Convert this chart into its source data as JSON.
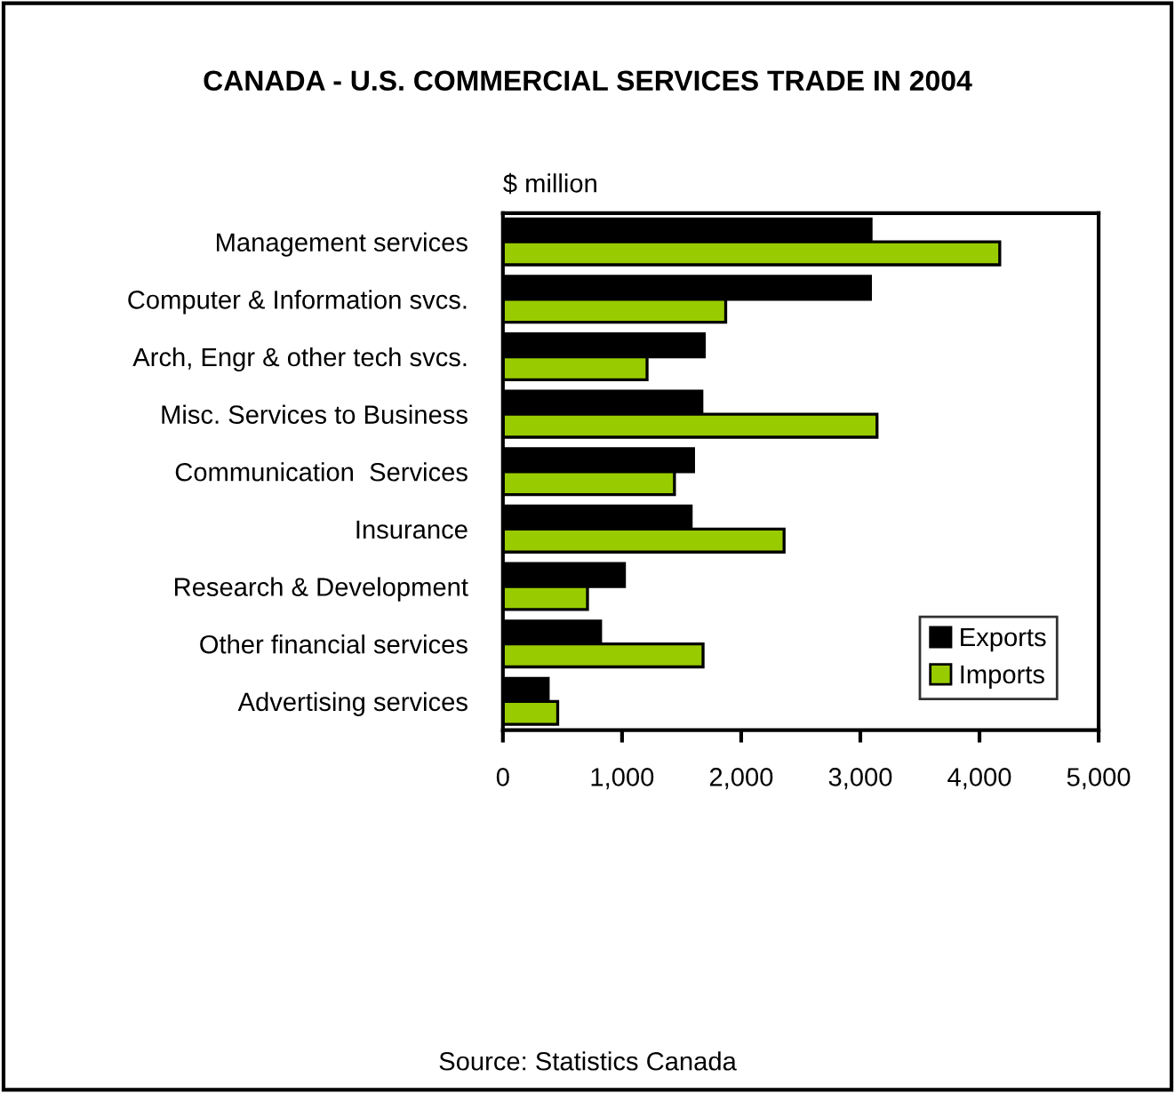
{
  "chart_data": {
    "type": "bar",
    "orientation": "horizontal",
    "title": "CANADA - U.S. COMMERCIAL SERVICES TRADE IN 2004",
    "ylabel": "$ million",
    "categories": [
      "Management services",
      "Computer & Information svcs.",
      "Arch, Engr & other tech svcs.",
      "Misc. Services to Business",
      "Communication  Services",
      "Insurance",
      "Research & Development",
      "Other financial services",
      "Advertising services"
    ],
    "series": [
      {
        "name": "Exports",
        "color": "#000000",
        "values": [
          3090,
          3085,
          1690,
          1670,
          1600,
          1580,
          1020,
          820,
          380
        ]
      },
      {
        "name": "Imports",
        "color": "#99cc00",
        "values": [
          4170,
          1870,
          1210,
          3140,
          1440,
          2360,
          710,
          1680,
          460
        ]
      }
    ],
    "xlim": [
      0,
      5000
    ],
    "xticks": [
      {
        "value": 0,
        "label": "0"
      },
      {
        "value": 1000,
        "label": "1,000"
      },
      {
        "value": 2000,
        "label": "2,000"
      },
      {
        "value": 3000,
        "label": "3,000"
      },
      {
        "value": 4000,
        "label": "4,000"
      },
      {
        "value": 5000,
        "label": "5,000"
      }
    ],
    "legend": "bottom right",
    "grid": false,
    "annotations": [
      "Source: Statistics Canada"
    ]
  }
}
